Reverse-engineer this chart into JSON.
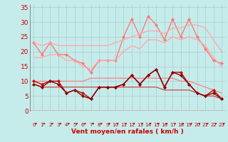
{
  "title": "",
  "xlabel": "Vent moyen/en rafales ( km/h )",
  "background_color": "#c5eceb",
  "grid_color": "#aacccc",
  "x": [
    0,
    1,
    2,
    3,
    4,
    5,
    6,
    7,
    8,
    9,
    10,
    11,
    12,
    13,
    14,
    15,
    16,
    17,
    18,
    19,
    20,
    21,
    22,
    23
  ],
  "series": [
    {
      "name": "gust_max_marker",
      "color": "#ff7777",
      "linewidth": 1.0,
      "marker": "D",
      "markersize": 2.5,
      "data": [
        23,
        19,
        23,
        19,
        19,
        17,
        16,
        13,
        17,
        17,
        17,
        25,
        31,
        25,
        32,
        29,
        24,
        31,
        25,
        31,
        25,
        21,
        17,
        16
      ]
    },
    {
      "name": "gust_upper_band",
      "color": "#ffaaaa",
      "linewidth": 1.0,
      "marker": null,
      "markersize": 0,
      "data": [
        23,
        22,
        23,
        22,
        22,
        22,
        22,
        22,
        22,
        22,
        23,
        24,
        25,
        26,
        27,
        27,
        26,
        28,
        28,
        29,
        29,
        28,
        24,
        20
      ]
    },
    {
      "name": "gust_lower_band",
      "color": "#ffaaaa",
      "linewidth": 1.0,
      "marker": null,
      "markersize": 0,
      "data": [
        18,
        18,
        19,
        19,
        17,
        17,
        15,
        14,
        17,
        17,
        17,
        20,
        22,
        21,
        24,
        24,
        23,
        25,
        24,
        25,
        24,
        22,
        18,
        15
      ]
    },
    {
      "name": "wind_upper_flat",
      "color": "#ff7777",
      "linewidth": 0.8,
      "marker": null,
      "markersize": 0,
      "data": [
        10,
        10,
        10,
        10,
        10,
        10,
        10,
        11,
        11,
        11,
        11,
        11,
        11,
        11,
        11,
        11,
        11,
        11,
        10,
        10,
        9,
        8,
        7,
        6
      ]
    },
    {
      "name": "wind_lower_flat",
      "color": "#cc3333",
      "linewidth": 0.8,
      "marker": null,
      "markersize": 0,
      "data": [
        9,
        8,
        8,
        8,
        8,
        8,
        8,
        8,
        8,
        8,
        8,
        8,
        8,
        8,
        8,
        8,
        7,
        7,
        7,
        7,
        6,
        5,
        5,
        4
      ]
    },
    {
      "name": "wind_variable",
      "color": "#cc0000",
      "linewidth": 1.0,
      "marker": "D",
      "markersize": 2.5,
      "data": [
        10,
        9,
        10,
        10,
        6,
        7,
        6,
        4,
        8,
        8,
        8,
        9,
        12,
        9,
        12,
        14,
        8,
        13,
        13,
        9,
        6,
        5,
        7,
        4
      ]
    },
    {
      "name": "wind_lower2",
      "color": "#880000",
      "linewidth": 1.0,
      "marker": "D",
      "markersize": 2.5,
      "data": [
        9,
        8,
        10,
        9,
        6,
        7,
        5,
        4,
        8,
        8,
        8,
        9,
        12,
        9,
        12,
        14,
        8,
        13,
        12,
        9,
        6,
        5,
        6,
        4
      ]
    }
  ],
  "ylim": [
    0,
    36
  ],
  "yticks": [
    0,
    5,
    10,
    15,
    20,
    25,
    30,
    35
  ],
  "xlim": [
    -0.5,
    23.5
  ],
  "xticks": [
    0,
    1,
    2,
    3,
    4,
    5,
    6,
    7,
    8,
    9,
    10,
    11,
    12,
    13,
    14,
    15,
    16,
    17,
    18,
    19,
    20,
    21,
    22,
    23
  ],
  "arrow_color": "#cc0000",
  "xlabel_color": "#cc0000",
  "tick_color": "#cc0000",
  "ytick_color": "#cc0000",
  "hline_color": "#cc0000"
}
